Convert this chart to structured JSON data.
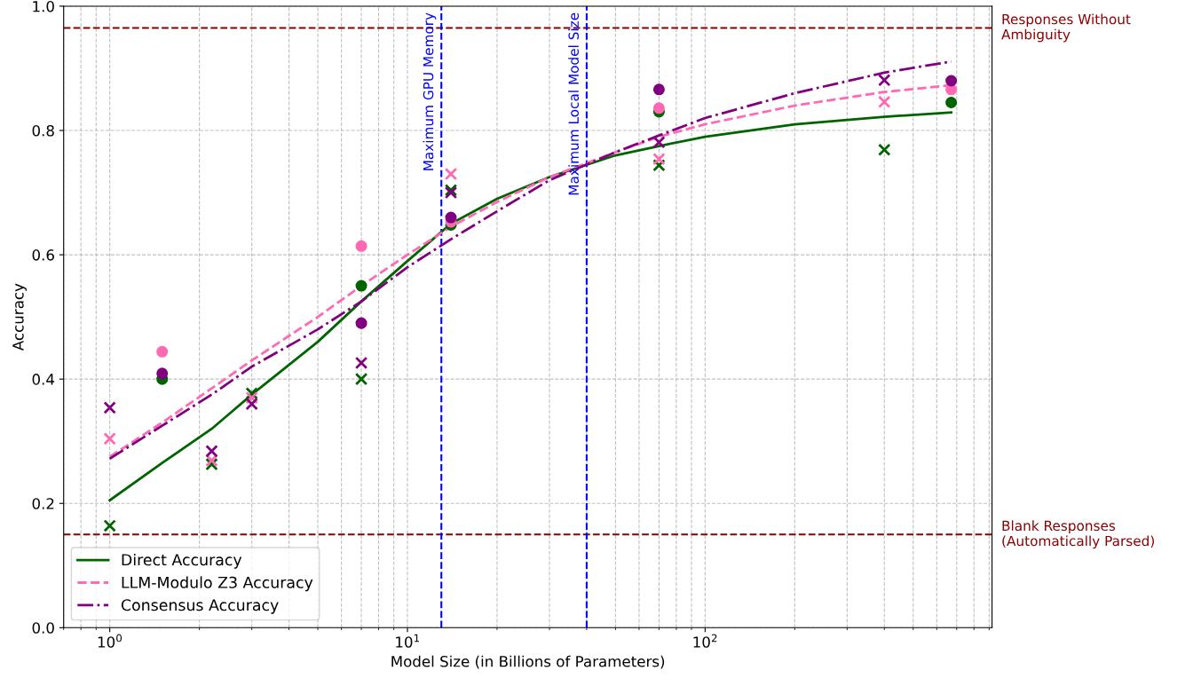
{
  "chart_data": {
    "type": "scatter",
    "xlabel": "Model Size (in Billions of Parameters)",
    "ylabel": "Accuracy",
    "log": "x",
    "xlim": [
      0.7,
      920
    ],
    "xticks": [
      {
        "value": 1,
        "label": "10$^{0}$"
      },
      {
        "value": 10,
        "label": "10$^{1}$"
      },
      {
        "value": 100,
        "label": "10$^{2}$"
      }
    ],
    "ylim": [
      0,
      1
    ],
    "yticks": [
      {
        "value": 0,
        "label": "0.0"
      },
      0.2,
      0.4,
      0.6,
      0.8,
      {
        "value": 1,
        "label": "1.0"
      }
    ],
    "grid": true,
    "legend": "bottom left",
    "series": [
      {
        "type": "line",
        "name": "Direct Accuracy",
        "color": "#006400",
        "line_style": "solid",
        "x": [
          1,
          1.5,
          2.2,
          3,
          5,
          7,
          10,
          14,
          20,
          30,
          50,
          70,
          100,
          200,
          400,
          671
        ],
        "values": [
          0.205,
          0.265,
          0.32,
          0.375,
          0.46,
          0.525,
          0.59,
          0.65,
          0.69,
          0.725,
          0.76,
          0.775,
          0.79,
          0.81,
          0.822,
          0.829
        ]
      },
      {
        "type": "line",
        "name": "LLM-Modulo Z3 Accuracy",
        "color": "#ff69b4",
        "line_style": "dashed",
        "x": [
          1,
          1.5,
          2.2,
          3,
          5,
          7,
          10,
          14,
          20,
          30,
          50,
          70,
          100,
          200,
          400,
          671
        ],
        "values": [
          0.275,
          0.33,
          0.385,
          0.43,
          0.5,
          0.55,
          0.6,
          0.645,
          0.685,
          0.725,
          0.765,
          0.79,
          0.81,
          0.84,
          0.862,
          0.873
        ]
      },
      {
        "type": "line",
        "name": "Consensus Accuracy",
        "color": "#800080",
        "line_style": "dashdot",
        "x": [
          1,
          1.5,
          2.2,
          3,
          5,
          7,
          10,
          14,
          20,
          30,
          50,
          70,
          100,
          200,
          400,
          671
        ],
        "values": [
          0.272,
          0.325,
          0.375,
          0.42,
          0.48,
          0.525,
          0.58,
          0.625,
          0.67,
          0.72,
          0.765,
          0.792,
          0.82,
          0.86,
          0.893,
          0.911
        ]
      },
      {
        "marker": "circle",
        "color": "#006400",
        "x": [
          1.5,
          7,
          14,
          70,
          671
        ],
        "values": [
          0.4,
          0.55,
          0.648,
          0.83,
          0.845
        ]
      },
      {
        "marker": "cross",
        "color": "#006400",
        "x": [
          1,
          2.2,
          3,
          7,
          14,
          70,
          400
        ],
        "values": [
          0.164,
          0.263,
          0.377,
          0.4,
          0.704,
          0.744,
          0.769
        ]
      },
      {
        "marker": "circle",
        "color": "#ff69b4",
        "x": [
          1.5,
          7,
          14,
          70,
          671
        ],
        "values": [
          0.444,
          0.614,
          0.653,
          0.836,
          0.866
        ]
      },
      {
        "marker": "cross",
        "color": "#ff69b4",
        "x": [
          1,
          2.2,
          3,
          14,
          70,
          400
        ],
        "values": [
          0.304,
          0.269,
          0.37,
          0.73,
          0.754,
          0.846
        ]
      },
      {
        "marker": "circle",
        "color": "#800080",
        "x": [
          1.5,
          7,
          14,
          70,
          671
        ],
        "values": [
          0.409,
          0.49,
          0.66,
          0.866,
          0.88
        ]
      },
      {
        "marker": "cross",
        "color": "#800080",
        "x": [
          1,
          2.2,
          3,
          7,
          14,
          70,
          400
        ],
        "values": [
          0.354,
          0.284,
          0.36,
          0.426,
          0.7,
          0.781,
          0.881
        ]
      }
    ],
    "ref_lines": [
      {
        "axis": "y",
        "value": 0.965,
        "label": "Responses Without\nAmbiguity",
        "color": "#8b0000",
        "line_style": "dashed"
      },
      {
        "axis": "y",
        "value": 0.15,
        "label": "Blank Responses\n(Automatically Parsed)",
        "color": "#8b0000",
        "line_style": "dashed"
      },
      {
        "axis": "x",
        "value": 13,
        "label": "Maximum GPU Memory",
        "color": "#0000ff",
        "line_style": "dashed"
      },
      {
        "axis": "x",
        "value": 40,
        "label": "Maximum Local Model Size",
        "color": "#0000ff",
        "line_style": "dashed"
      }
    ]
  }
}
